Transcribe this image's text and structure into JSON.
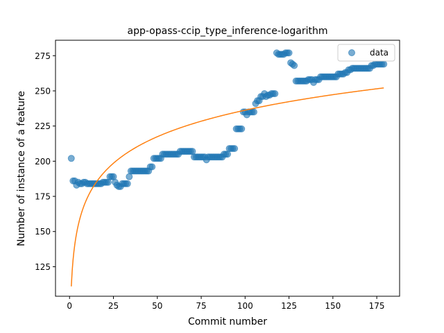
{
  "chart_data": {
    "type": "scatter",
    "title": "app-opass-ccip_type_inference-logarithm",
    "xlabel": "Commit number",
    "ylabel": "Number of instance of a feature",
    "xlim": [
      -8,
      188
    ],
    "ylim": [
      104,
      286
    ],
    "xticks": [
      0,
      25,
      50,
      75,
      100,
      125,
      150,
      175
    ],
    "yticks": [
      125,
      150,
      175,
      200,
      225,
      250,
      275
    ],
    "grid": false,
    "legend": {
      "position": "top-right",
      "entries": [
        "data"
      ]
    },
    "colors": {
      "data": "#1f77b4",
      "fit": "#ff7f0e"
    },
    "series": [
      {
        "name": "data",
        "kind": "scatter",
        "x": [
          1,
          2,
          3,
          4,
          5,
          6,
          7,
          8,
          9,
          10,
          11,
          12,
          13,
          14,
          15,
          16,
          17,
          18,
          19,
          20,
          21,
          22,
          23,
          24,
          25,
          26,
          27,
          28,
          29,
          30,
          31,
          32,
          33,
          34,
          35,
          36,
          37,
          38,
          39,
          40,
          41,
          42,
          43,
          44,
          45,
          46,
          47,
          48,
          49,
          50,
          51,
          52,
          53,
          54,
          55,
          56,
          57,
          58,
          59,
          60,
          61,
          62,
          63,
          64,
          65,
          66,
          67,
          68,
          69,
          70,
          71,
          72,
          73,
          74,
          75,
          76,
          77,
          78,
          79,
          80,
          81,
          82,
          83,
          84,
          85,
          86,
          87,
          88,
          89,
          90,
          91,
          92,
          93,
          94,
          95,
          96,
          97,
          98,
          99,
          100,
          101,
          102,
          103,
          104,
          105,
          106,
          107,
          108,
          109,
          110,
          111,
          112,
          113,
          114,
          115,
          116,
          117,
          118,
          119,
          120,
          121,
          122,
          123,
          124,
          125,
          126,
          127,
          128,
          129,
          130,
          131,
          132,
          133,
          134,
          135,
          136,
          137,
          138,
          139,
          140,
          141,
          142,
          143,
          144,
          145,
          146,
          147,
          148,
          149,
          150,
          151,
          152,
          153,
          154,
          155,
          156,
          157,
          158,
          159,
          160,
          161,
          162,
          163,
          164,
          165,
          166,
          167,
          168,
          169,
          170,
          171,
          172,
          173,
          174,
          175,
          176,
          177,
          178,
          179
        ],
        "y": [
          202,
          186,
          186,
          183,
          185,
          184,
          184,
          185,
          185,
          184,
          184,
          184,
          184,
          184,
          184,
          184,
          184,
          184,
          185,
          185,
          185,
          185,
          189,
          189,
          189,
          185,
          183,
          182,
          182,
          184,
          184,
          184,
          184,
          189,
          193,
          193,
          193,
          193,
          193,
          193,
          193,
          193,
          193,
          193,
          193,
          196,
          196,
          202,
          202,
          202,
          202,
          202,
          205,
          205,
          205,
          205,
          205,
          205,
          205,
          205,
          205,
          205,
          207,
          207,
          207,
          207,
          207,
          207,
          207,
          207,
          203,
          203,
          203,
          203,
          203,
          203,
          203,
          201,
          203,
          203,
          203,
          203,
          203,
          203,
          203,
          203,
          203,
          205,
          205,
          205,
          209,
          209,
          209,
          209,
          223,
          223,
          223,
          223,
          235,
          235,
          233,
          235,
          235,
          235,
          235,
          241,
          243,
          243,
          246,
          246,
          248,
          246,
          247,
          247,
          248,
          248,
          248,
          277,
          276,
          276,
          276,
          276,
          277,
          277,
          277,
          270,
          269,
          268,
          257,
          257,
          257,
          257,
          257,
          257,
          257,
          258,
          258,
          258,
          256,
          258,
          258,
          258,
          260,
          260,
          260,
          260,
          260,
          260,
          260,
          260,
          260,
          260,
          262,
          262,
          262,
          262,
          263,
          263,
          265,
          265,
          266,
          266,
          266,
          266,
          266,
          266,
          266,
          266,
          266,
          266,
          266,
          268,
          268,
          269,
          269,
          269,
          269,
          269,
          269
        ]
      },
      {
        "name": "",
        "kind": "line",
        "model": "logarithmic",
        "coefficients": {
          "a": 111.0,
          "b": 27.2
        },
        "x_range": [
          1,
          179
        ]
      }
    ]
  }
}
